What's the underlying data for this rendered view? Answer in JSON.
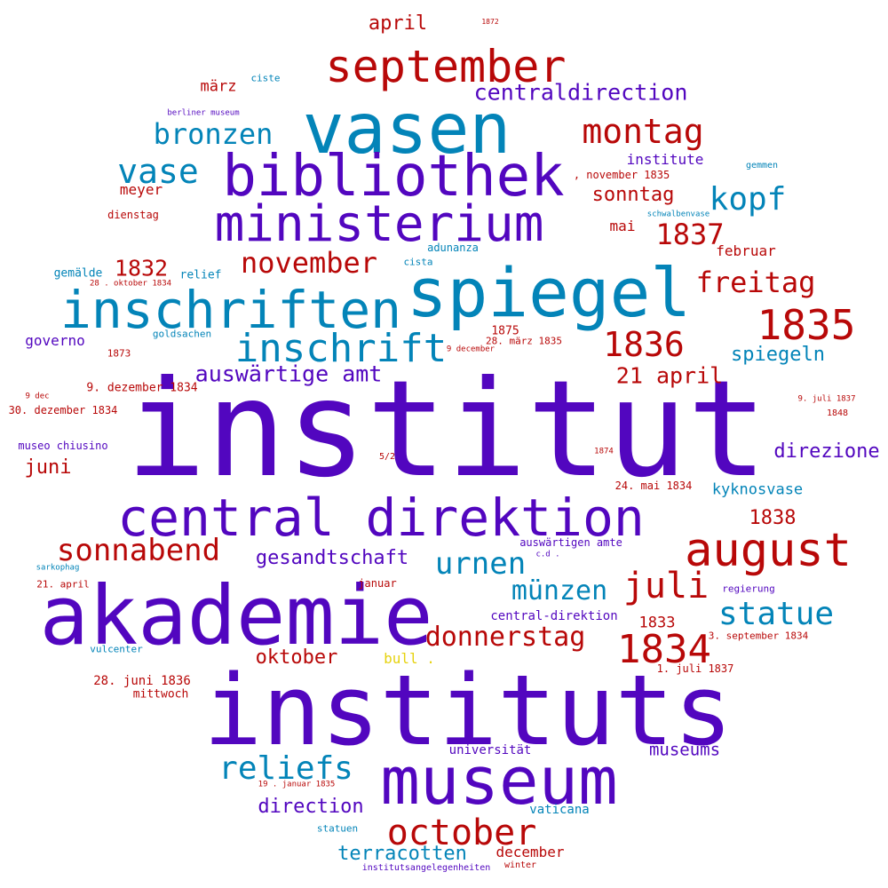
{
  "words": [
    {
      "text": "institut",
      "color": "purple"
    },
    {
      "text": "instituts",
      "color": "purple"
    },
    {
      "text": "akademie",
      "color": "purple"
    },
    {
      "text": "vasen",
      "color": "blue"
    },
    {
      "text": "spiegel",
      "color": "blue"
    },
    {
      "text": "bibliothek",
      "color": "purple"
    },
    {
      "text": "museum",
      "color": "purple"
    },
    {
      "text": "central direktion",
      "color": "purple"
    },
    {
      "text": "inschriften",
      "color": "blue"
    },
    {
      "text": "ministerium",
      "color": "purple"
    },
    {
      "text": "september",
      "color": "red"
    },
    {
      "text": "august",
      "color": "red"
    },
    {
      "text": "1835",
      "color": "red"
    },
    {
      "text": "1834",
      "color": "red"
    },
    {
      "text": "october",
      "color": "red"
    },
    {
      "text": "inschrift",
      "color": "blue"
    },
    {
      "text": "juli",
      "color": "red"
    },
    {
      "text": "montag",
      "color": "red"
    },
    {
      "text": "1836",
      "color": "red"
    },
    {
      "text": "reliefs",
      "color": "blue"
    },
    {
      "text": "vase",
      "color": "blue"
    },
    {
      "text": "kopf",
      "color": "blue"
    },
    {
      "text": "statue",
      "color": "blue"
    },
    {
      "text": "sonnabend",
      "color": "red"
    },
    {
      "text": "donnerstag",
      "color": "red"
    },
    {
      "text": "urnen",
      "color": "blue"
    },
    {
      "text": "münzen",
      "color": "blue"
    },
    {
      "text": "november",
      "color": "red"
    },
    {
      "text": "freitag",
      "color": "red"
    },
    {
      "text": "bronzen",
      "color": "blue"
    },
    {
      "text": "1837",
      "color": "red"
    },
    {
      "text": "centraldirection",
      "color": "purple"
    },
    {
      "text": "auswärtige amt",
      "color": "purple"
    },
    {
      "text": "21 april",
      "color": "red"
    },
    {
      "text": "gesandtschaft",
      "color": "purple"
    },
    {
      "text": "1832",
      "color": "red"
    },
    {
      "text": "spiegeln",
      "color": "blue"
    },
    {
      "text": "oktober",
      "color": "red"
    },
    {
      "text": "direzione",
      "color": "purple"
    },
    {
      "text": "direction",
      "color": "purple"
    },
    {
      "text": "1838",
      "color": "red"
    },
    {
      "text": "sonntag",
      "color": "red"
    },
    {
      "text": "terracotten",
      "color": "blue"
    },
    {
      "text": "april",
      "color": "red"
    },
    {
      "text": "juni",
      "color": "red"
    },
    {
      "text": "museums",
      "color": "purple"
    },
    {
      "text": "1833",
      "color": "red"
    },
    {
      "text": "kyknosvase",
      "color": "blue"
    },
    {
      "text": "december",
      "color": "red"
    },
    {
      "text": "märz",
      "color": "red"
    },
    {
      "text": "institute",
      "color": "purple"
    },
    {
      "text": "mai",
      "color": "red"
    },
    {
      "text": "februar",
      "color": "red"
    },
    {
      "text": "meyer",
      "color": "red"
    },
    {
      "text": "governo",
      "color": "purple"
    },
    {
      "text": "28. juni 1836",
      "color": "red"
    },
    {
      "text": "central-direktion",
      "color": "purple"
    },
    {
      "text": "vaticana",
      "color": "blue"
    },
    {
      "text": "universität",
      "color": "purple"
    },
    {
      "text": "bull .",
      "color": "yellow"
    },
    {
      "text": "mittwoch",
      "color": "red"
    },
    {
      "text": "1875",
      "color": "red"
    },
    {
      "text": "9. dezember 1834",
      "color": "red"
    },
    {
      "text": "30. dezember 1834",
      "color": "red"
    },
    {
      "text": ", november 1835",
      "color": "red"
    },
    {
      "text": "24. mai 1834",
      "color": "red"
    },
    {
      "text": "auswärtigen amte",
      "color": "purple"
    },
    {
      "text": "relief",
      "color": "blue"
    },
    {
      "text": "gemälde",
      "color": "blue"
    },
    {
      "text": "museo chiusino",
      "color": "purple"
    },
    {
      "text": "1. juli 1837",
      "color": "red"
    },
    {
      "text": "3. september 1834",
      "color": "red"
    },
    {
      "text": "adunanza",
      "color": "blue"
    },
    {
      "text": "januar",
      "color": "red"
    },
    {
      "text": "dienstag",
      "color": "red"
    },
    {
      "text": "28. märz 1835",
      "color": "red"
    },
    {
      "text": "21. april",
      "color": "red"
    },
    {
      "text": "vulcenter",
      "color": "blue"
    },
    {
      "text": "regierung",
      "color": "purple"
    },
    {
      "text": "statuen",
      "color": "blue"
    },
    {
      "text": "institutsangelegenheiten",
      "color": "purple"
    },
    {
      "text": "winter",
      "color": "red"
    },
    {
      "text": "goldsachen",
      "color": "blue"
    },
    {
      "text": "1873",
      "color": "red"
    },
    {
      "text": "cista",
      "color": "blue"
    },
    {
      "text": "ciste",
      "color": "blue"
    },
    {
      "text": "gemmen",
      "color": "blue"
    },
    {
      "text": "berliner museum",
      "color": "purple"
    },
    {
      "text": "schwalbenvase",
      "color": "blue"
    },
    {
      "text": "28 . oktober 1834",
      "color": "red"
    },
    {
      "text": "9 december",
      "color": "red"
    },
    {
      "text": "9 dec",
      "color": "red"
    },
    {
      "text": "9. juli 1837",
      "color": "red"
    },
    {
      "text": "1848",
      "color": "red"
    },
    {
      "text": "5/2",
      "color": "red"
    },
    {
      "text": "1874",
      "color": "red"
    },
    {
      "text": "c.d .",
      "color": "purple"
    },
    {
      "text": "sarkophag",
      "color": "blue"
    },
    {
      "text": "19 . januar 1835",
      "color": "red"
    },
    {
      "text": "1872",
      "color": "red"
    }
  ]
}
